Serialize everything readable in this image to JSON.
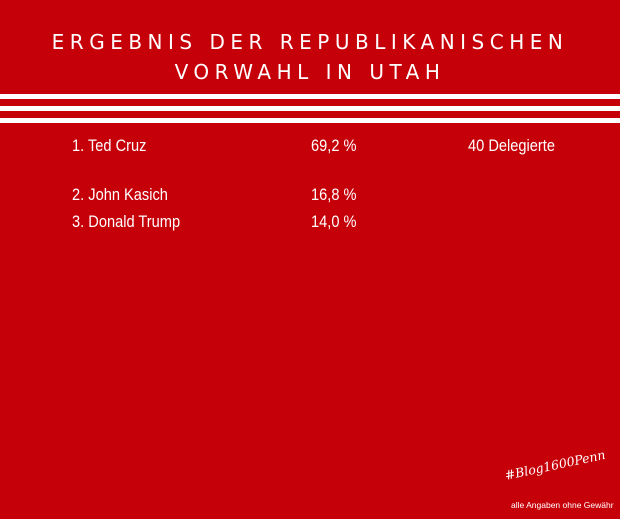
{
  "title": {
    "line1": "ERGEBNIS DER REPUBLIKANISCHEN",
    "line2": "VORWAHL IN UTAH"
  },
  "results": [
    {
      "rank_name": "1.  Ted Cruz",
      "percent": "69,2 %",
      "delegates": "40 Delegierte"
    },
    {
      "rank_name": "2.  John Kasich",
      "percent": "16,8 %",
      "delegates": ""
    },
    {
      "rank_name": "3.  Donald Trump",
      "percent": "14,0 %",
      "delegates": ""
    }
  ],
  "footer": {
    "hashtag": "#Blog1600Penn",
    "disclaimer": "alle Angaben ohne Gewähr"
  },
  "colors": {
    "background": "#c60008",
    "text": "#ffffff",
    "stripes": "#ffffff"
  }
}
